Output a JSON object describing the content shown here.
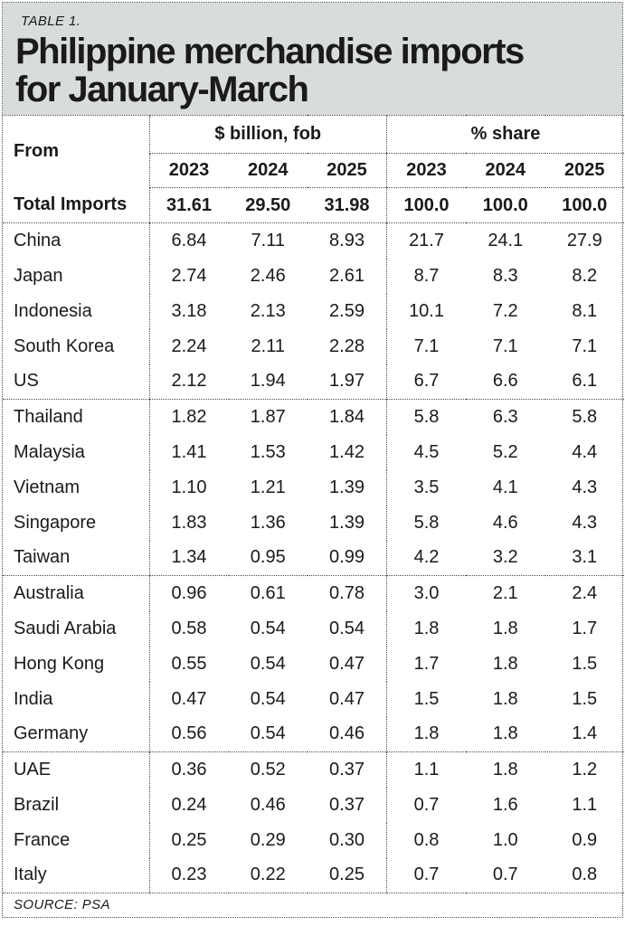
{
  "chart_data": {
    "type": "table",
    "table_label": "TABLE 1.",
    "title_lines": [
      "Philippine merchandise imports",
      "for January-March"
    ],
    "row_header": "From",
    "column_groups": [
      "$ billion, fob",
      "% share"
    ],
    "years": [
      "2023",
      "2024",
      "2025"
    ],
    "total": {
      "name": "Total Imports",
      "usd_billion_fob": [
        "31.61",
        "29.50",
        "31.98"
      ],
      "pct_share": [
        "100.0",
        "100.0",
        "100.0"
      ]
    },
    "groups": [
      [
        {
          "name": "China",
          "usd_billion_fob": [
            "6.84",
            "7.11",
            "8.93"
          ],
          "pct_share": [
            "21.7",
            "24.1",
            "27.9"
          ]
        },
        {
          "name": "Japan",
          "usd_billion_fob": [
            "2.74",
            "2.46",
            "2.61"
          ],
          "pct_share": [
            "8.7",
            "8.3",
            "8.2"
          ]
        },
        {
          "name": "Indonesia",
          "usd_billion_fob": [
            "3.18",
            "2.13",
            "2.59"
          ],
          "pct_share": [
            "10.1",
            "7.2",
            "8.1"
          ]
        },
        {
          "name": "South Korea",
          "usd_billion_fob": [
            "2.24",
            "2.11",
            "2.28"
          ],
          "pct_share": [
            "7.1",
            "7.1",
            "7.1"
          ]
        },
        {
          "name": "US",
          "usd_billion_fob": [
            "2.12",
            "1.94",
            "1.97"
          ],
          "pct_share": [
            "6.7",
            "6.6",
            "6.1"
          ]
        }
      ],
      [
        {
          "name": "Thailand",
          "usd_billion_fob": [
            "1.82",
            "1.87",
            "1.84"
          ],
          "pct_share": [
            "5.8",
            "6.3",
            "5.8"
          ]
        },
        {
          "name": "Malaysia",
          "usd_billion_fob": [
            "1.41",
            "1.53",
            "1.42"
          ],
          "pct_share": [
            "4.5",
            "5.2",
            "4.4"
          ]
        },
        {
          "name": "Vietnam",
          "usd_billion_fob": [
            "1.10",
            "1.21",
            "1.39"
          ],
          "pct_share": [
            "3.5",
            "4.1",
            "4.3"
          ]
        },
        {
          "name": "Singapore",
          "usd_billion_fob": [
            "1.83",
            "1.36",
            "1.39"
          ],
          "pct_share": [
            "5.8",
            "4.6",
            "4.3"
          ]
        },
        {
          "name": "Taiwan",
          "usd_billion_fob": [
            "1.34",
            "0.95",
            "0.99"
          ],
          "pct_share": [
            "4.2",
            "3.2",
            "3.1"
          ]
        }
      ],
      [
        {
          "name": "Australia",
          "usd_billion_fob": [
            "0.96",
            "0.61",
            "0.78"
          ],
          "pct_share": [
            "3.0",
            "2.1",
            "2.4"
          ]
        },
        {
          "name": "Saudi Arabia",
          "usd_billion_fob": [
            "0.58",
            "0.54",
            "0.54"
          ],
          "pct_share": [
            "1.8",
            "1.8",
            "1.7"
          ]
        },
        {
          "name": "Hong Kong",
          "usd_billion_fob": [
            "0.55",
            "0.54",
            "0.47"
          ],
          "pct_share": [
            "1.7",
            "1.8",
            "1.5"
          ]
        },
        {
          "name": "India",
          "usd_billion_fob": [
            "0.47",
            "0.54",
            "0.47"
          ],
          "pct_share": [
            "1.5",
            "1.8",
            "1.5"
          ]
        },
        {
          "name": "Germany",
          "usd_billion_fob": [
            "0.56",
            "0.54",
            "0.46"
          ],
          "pct_share": [
            "1.8",
            "1.8",
            "1.4"
          ]
        }
      ],
      [
        {
          "name": "UAE",
          "usd_billion_fob": [
            "0.36",
            "0.52",
            "0.37"
          ],
          "pct_share": [
            "1.1",
            "1.8",
            "1.2"
          ]
        },
        {
          "name": "Brazil",
          "usd_billion_fob": [
            "0.24",
            "0.46",
            "0.37"
          ],
          "pct_share": [
            "0.7",
            "1.6",
            "1.1"
          ]
        },
        {
          "name": "France",
          "usd_billion_fob": [
            "0.25",
            "0.29",
            "0.30"
          ],
          "pct_share": [
            "0.8",
            "1.0",
            "0.9"
          ]
        },
        {
          "name": "Italy",
          "usd_billion_fob": [
            "0.23",
            "0.22",
            "0.25"
          ],
          "pct_share": [
            "0.7",
            "0.7",
            "0.8"
          ]
        }
      ]
    ],
    "source": "SOURCE: PSA",
    "colors": {
      "title_band": "#d9dcdc",
      "border": "#4a4a4a",
      "text": "#1a1a1a"
    }
  }
}
